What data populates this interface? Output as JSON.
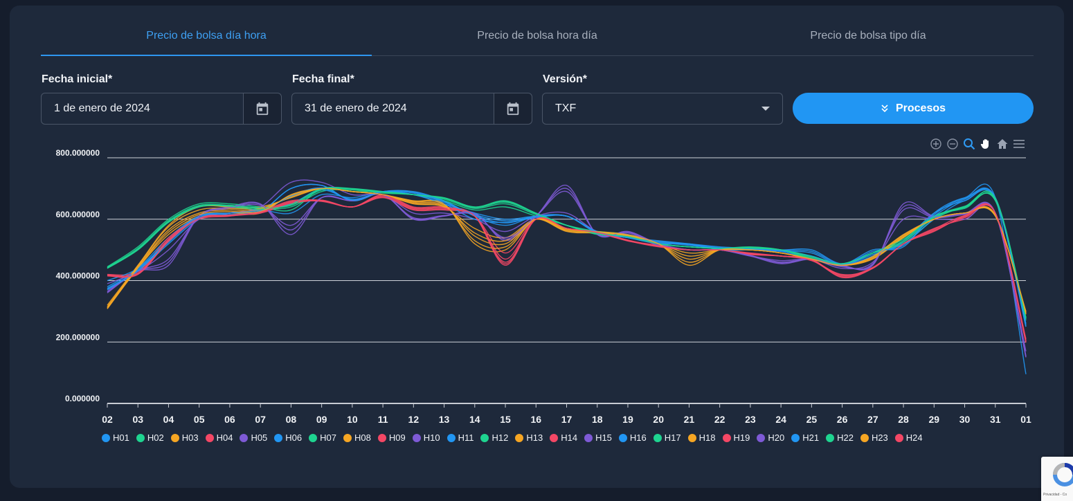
{
  "tabs": [
    {
      "label": "Precio de bolsa día hora",
      "active": true
    },
    {
      "label": "Precio de bolsa hora día",
      "active": false
    },
    {
      "label": "Precio de bolsa tipo día",
      "active": false
    }
  ],
  "form": {
    "start_label": "Fecha inicial*",
    "start_value": "1 de enero de 2024",
    "end_label": "Fecha final*",
    "end_value": "31 de enero de 2024",
    "version_label": "Versión*",
    "version_value": "TXF",
    "process_label": "Procesos"
  },
  "recaptcha_text": "Privacidad - Co",
  "chart_data": {
    "type": "line",
    "ylim": [
      0,
      800
    ],
    "yticks": [
      "800.000000",
      "600.000000",
      "400.000000",
      "200.000000",
      "0.000000"
    ],
    "ytick_values": [
      800,
      600,
      400,
      200,
      0
    ],
    "categories": [
      "02",
      "03",
      "04",
      "05",
      "06",
      "07",
      "08",
      "09",
      "10",
      "11",
      "12",
      "13",
      "14",
      "15",
      "16",
      "17",
      "18",
      "19",
      "20",
      "21",
      "22",
      "23",
      "24",
      "25",
      "26",
      "27",
      "28",
      "29",
      "30",
      "31",
      "01"
    ],
    "colors": [
      "#2196f3",
      "#1ed490",
      "#f6a623",
      "#f44765",
      "#7e5ad6"
    ],
    "grid": true,
    "legend": "bottom",
    "series": [
      {
        "name": "H01",
        "values": [
          370,
          430,
          520,
          600,
          620,
          625,
          700,
          710,
          660,
          690,
          690,
          660,
          610,
          580,
          610,
          610,
          560,
          540,
          530,
          520,
          510,
          505,
          500,
          500,
          455,
          500,
          510,
          620,
          670,
          670,
          95
        ]
      },
      {
        "name": "H02",
        "values": [
          440,
          500,
          590,
          640,
          640,
          630,
          650,
          700,
          700,
          690,
          680,
          670,
          640,
          660,
          620,
          580,
          550,
          540,
          520,
          510,
          505,
          505,
          500,
          480,
          455,
          490,
          540,
          610,
          640,
          670,
          280
        ]
      },
      {
        "name": "H03",
        "values": [
          310,
          440,
          550,
          610,
          620,
          620,
          680,
          700,
          690,
          680,
          660,
          650,
          520,
          500,
          600,
          570,
          560,
          550,
          520,
          450,
          500,
          500,
          490,
          470,
          450,
          480,
          550,
          600,
          620,
          610,
          300
        ]
      },
      {
        "name": "H04",
        "values": [
          415,
          420,
          530,
          610,
          615,
          620,
          650,
          660,
          640,
          680,
          640,
          640,
          610,
          450,
          600,
          570,
          560,
          530,
          510,
          500,
          500,
          490,
          480,
          470,
          410,
          440,
          520,
          560,
          610,
          620,
          200
        ]
      },
      {
        "name": "H05",
        "values": [
          360,
          430,
          450,
          610,
          640,
          650,
          550,
          670,
          660,
          680,
          600,
          610,
          620,
          530,
          610,
          710,
          550,
          560,
          520,
          500,
          500,
          480,
          455,
          470,
          450,
          450,
          650,
          610,
          620,
          620,
          150
        ]
      },
      {
        "name": "H06",
        "values": [
          380,
          440,
          540,
          610,
          620,
          630,
          620,
          680,
          670,
          690,
          680,
          650,
          620,
          600,
          610,
          610,
          560,
          540,
          520,
          520,
          500,
          500,
          495,
          470,
          450,
          480,
          530,
          620,
          660,
          670,
          250
        ]
      },
      {
        "name": "H07",
        "values": [
          445,
          510,
          600,
          650,
          650,
          640,
          630,
          700,
          690,
          690,
          680,
          660,
          630,
          640,
          610,
          580,
          560,
          550,
          520,
          510,
          505,
          510,
          500,
          470,
          455,
          490,
          520,
          600,
          640,
          660,
          270
        ]
      },
      {
        "name": "H08",
        "values": [
          320,
          450,
          580,
          640,
          640,
          640,
          670,
          700,
          690,
          680,
          650,
          640,
          570,
          540,
          600,
          560,
          555,
          545,
          520,
          490,
          500,
          500,
          490,
          470,
          450,
          470,
          540,
          600,
          620,
          615,
          290
        ]
      },
      {
        "name": "H09",
        "values": [
          420,
          430,
          540,
          600,
          610,
          625,
          660,
          660,
          640,
          670,
          630,
          630,
          610,
          490,
          600,
          570,
          555,
          530,
          515,
          500,
          500,
          485,
          480,
          465,
          420,
          440,
          520,
          570,
          600,
          620,
          210
        ]
      },
      {
        "name": "H10",
        "values": [
          390,
          430,
          500,
          600,
          620,
          640,
          720,
          720,
          680,
          680,
          620,
          620,
          600,
          560,
          610,
          620,
          560,
          550,
          515,
          500,
          500,
          480,
          465,
          470,
          440,
          460,
          600,
          600,
          600,
          620,
          170
        ]
      },
      {
        "name": "H11",
        "values": [
          400,
          440,
          530,
          610,
          615,
          625,
          700,
          710,
          660,
          690,
          680,
          650,
          600,
          590,
          605,
          610,
          555,
          540,
          525,
          515,
          505,
          500,
          495,
          490,
          450,
          490,
          520,
          600,
          660,
          665,
          260
        ]
      },
      {
        "name": "H12",
        "values": [
          440,
          500,
          590,
          640,
          645,
          635,
          640,
          690,
          695,
          685,
          680,
          665,
          635,
          650,
          615,
          580,
          555,
          545,
          520,
          510,
          505,
          505,
          500,
          475,
          455,
          490,
          530,
          610,
          635,
          665,
          280
        ]
      },
      {
        "name": "H13",
        "values": [
          315,
          445,
          565,
          620,
          630,
          630,
          675,
          700,
          690,
          680,
          655,
          645,
          545,
          520,
          600,
          565,
          558,
          548,
          520,
          470,
          500,
          500,
          490,
          470,
          450,
          475,
          545,
          600,
          620,
          612,
          295
        ]
      },
      {
        "name": "H14",
        "values": [
          418,
          425,
          535,
          605,
          612,
          622,
          655,
          662,
          640,
          675,
          635,
          635,
          610,
          470,
          600,
          570,
          558,
          532,
          512,
          500,
          500,
          488,
          480,
          468,
          415,
          442,
          520,
          565,
          605,
          620,
          205
        ]
      },
      {
        "name": "H15",
        "values": [
          365,
          432,
          470,
          610,
          635,
          645,
          580,
          670,
          660,
          680,
          605,
          612,
          615,
          540,
          610,
          690,
          552,
          555,
          518,
          500,
          500,
          482,
          460,
          470,
          445,
          455,
          630,
          605,
          615,
          620,
          155
        ]
      },
      {
        "name": "H16",
        "values": [
          375,
          435,
          530,
          610,
          620,
          628,
          650,
          695,
          665,
          690,
          685,
          655,
          615,
          595,
          608,
          610,
          558,
          540,
          522,
          518,
          502,
          502,
          497,
          480,
          452,
          485,
          525,
          610,
          665,
          668,
          255
        ]
      },
      {
        "name": "H17",
        "values": [
          442,
          505,
          595,
          645,
          645,
          638,
          645,
          695,
          698,
          688,
          680,
          668,
          638,
          655,
          618,
          580,
          552,
          548,
          520,
          510,
          505,
          508,
          500,
          472,
          455,
          490,
          525,
          605,
          638,
          662,
          275
        ]
      },
      {
        "name": "H18",
        "values": [
          312,
          448,
          575,
          630,
          635,
          635,
          672,
          700,
          690,
          680,
          652,
          642,
          555,
          530,
          600,
          562,
          556,
          546,
          520,
          480,
          500,
          500,
          490,
          470,
          450,
          472,
          542,
          600,
          620,
          613,
          292
        ]
      },
      {
        "name": "H19",
        "values": [
          417,
          423,
          532,
          603,
          611,
          621,
          652,
          661,
          640,
          678,
          637,
          637,
          610,
          460,
          600,
          570,
          556,
          531,
          511,
          500,
          500,
          486,
          480,
          466,
          412,
          441,
          520,
          562,
          608,
          620,
          202
        ]
      },
      {
        "name": "H20",
        "values": [
          362,
          431,
          460,
          610,
          638,
          648,
          565,
          670,
          660,
          680,
          602,
          611,
          618,
          535,
          610,
          700,
          551,
          558,
          519,
          500,
          500,
          481,
          458,
          470,
          447,
          452,
          640,
          608,
          618,
          620,
          152
        ]
      },
      {
        "name": "H21",
        "values": [
          372,
          432,
          525,
          605,
          620,
          626,
          675,
          702,
          662,
          690,
          688,
          658,
          612,
          588,
          609,
          610,
          559,
          540,
          527,
          519,
          507,
          503,
          498,
          495,
          453,
          495,
          515,
          615,
          668,
          669,
          250
        ]
      },
      {
        "name": "H22",
        "values": [
          443,
          503,
          592,
          642,
          642,
          632,
          648,
          698,
          699,
          689,
          680,
          669,
          639,
          658,
          619,
          580,
          553,
          543,
          520,
          510,
          505,
          506,
          500,
          478,
          455,
          490,
          535,
          608,
          642,
          668,
          278
        ]
      },
      {
        "name": "H23",
        "values": [
          308,
          442,
          558,
          615,
          625,
          625,
          678,
          700,
          690,
          680,
          658,
          648,
          530,
          510,
          600,
          568,
          559,
          549,
          520,
          460,
          500,
          500,
          490,
          470,
          450,
          478,
          548,
          600,
          620,
          611,
          298
        ]
      },
      {
        "name": "H24",
        "values": [
          416,
          421,
          528,
          602,
          613,
          623,
          657,
          658,
          640,
          672,
          632,
          632,
          610,
          455,
          600,
          570,
          557,
          529,
          513,
          500,
          500,
          487,
          480,
          467,
          418,
          443,
          520,
          568,
          612,
          620,
          198
        ]
      }
    ]
  }
}
